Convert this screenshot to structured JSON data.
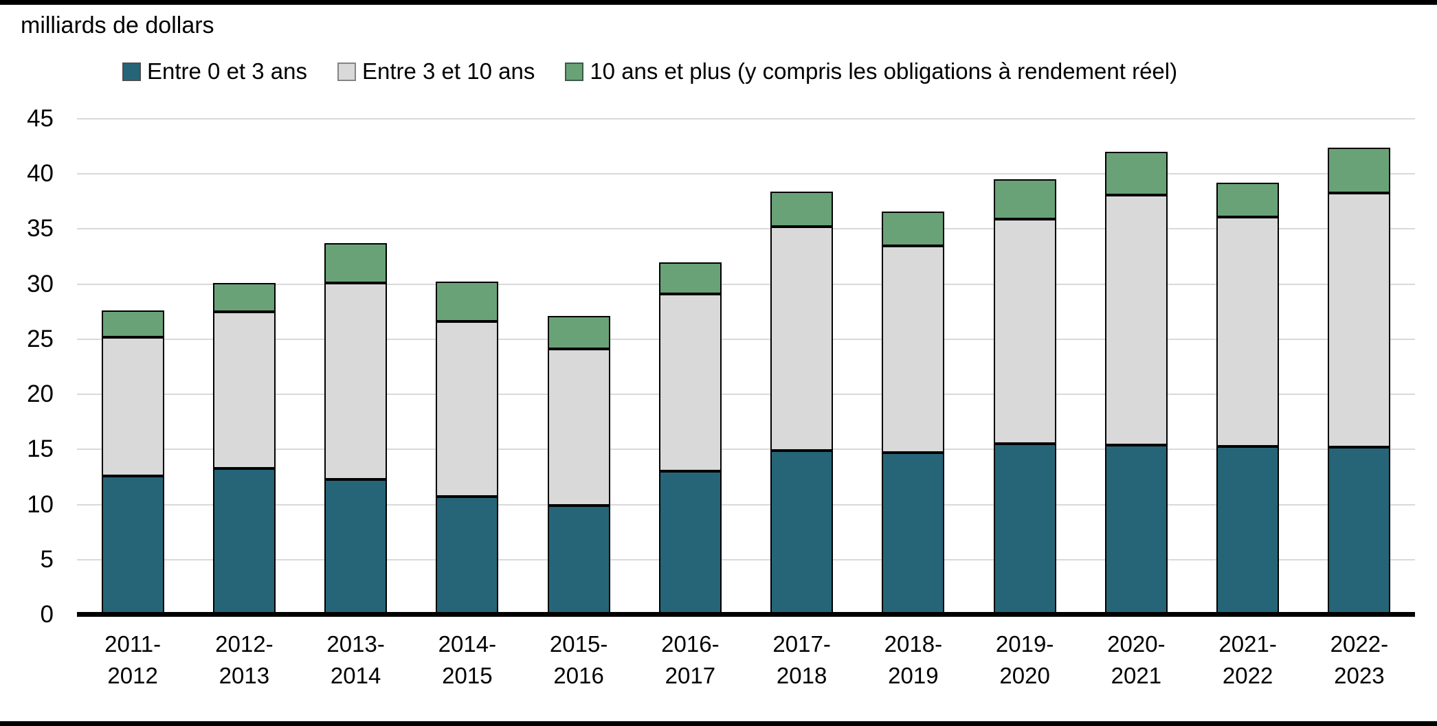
{
  "figure": {
    "title": "milliards de dollars"
  },
  "legend": [
    {
      "label": "Entre 0 et 3 ans",
      "color": "#266578",
      "border": "#4d4d4d"
    },
    {
      "label": "Entre 3 et 10 ans",
      "color": "#d9d9d9",
      "border": "#848484"
    },
    {
      "label": "10 ans et plus (y compris les obligations à rendement réel)",
      "color": "#69a277",
      "border": "#3c5a47"
    }
  ],
  "chart_data": {
    "type": "bar",
    "subtype": "stacked",
    "title": "milliards de dollars",
    "ylabel": "milliards de dollars",
    "xlabel": "",
    "ylim": [
      0,
      45
    ],
    "yticks": [
      0,
      5,
      10,
      15,
      20,
      25,
      30,
      35,
      40,
      45
    ],
    "grid": true,
    "legend_position": "top",
    "categories": [
      {
        "top": "2011-",
        "bottom": "2012"
      },
      {
        "top": "2012-",
        "bottom": "2013"
      },
      {
        "top": "2013-",
        "bottom": "2014"
      },
      {
        "top": "2014-",
        "bottom": "2015"
      },
      {
        "top": "2015-",
        "bottom": "2016"
      },
      {
        "top": "2016-",
        "bottom": "2017"
      },
      {
        "top": "2017-",
        "bottom": "2018"
      },
      {
        "top": "2018-",
        "bottom": "2019"
      },
      {
        "top": "2019-",
        "bottom": "2020"
      },
      {
        "top": "2020-",
        "bottom": "2021"
      },
      {
        "top": "2021-",
        "bottom": "2022"
      },
      {
        "top": "2022-",
        "bottom": "2023"
      }
    ],
    "series": [
      {
        "name": "Entre 0 et 3 ans",
        "color": "#266578",
        "values": [
          12.6,
          13.3,
          12.3,
          10.7,
          9.9,
          13.0,
          14.9,
          14.7,
          15.5,
          15.4,
          15.3,
          15.2
        ]
      },
      {
        "name": "Entre 3 et 10 ans",
        "color": "#d9d9d9",
        "values": [
          12.6,
          14.2,
          17.8,
          15.9,
          14.2,
          16.1,
          20.3,
          18.8,
          20.4,
          22.7,
          20.8,
          23.1
        ]
      },
      {
        "name": "10 ans et plus (y compris les obligations à rendement réel)",
        "color": "#69a277",
        "values": [
          2.4,
          2.6,
          3.6,
          3.6,
          3.0,
          2.9,
          3.2,
          3.1,
          3.6,
          3.9,
          3.1,
          4.1
        ]
      }
    ],
    "totals": [
      27.6,
      30.1,
      33.7,
      30.2,
      27.1,
      32.0,
      38.4,
      36.6,
      39.5,
      42.0,
      39.2,
      42.4
    ]
  }
}
